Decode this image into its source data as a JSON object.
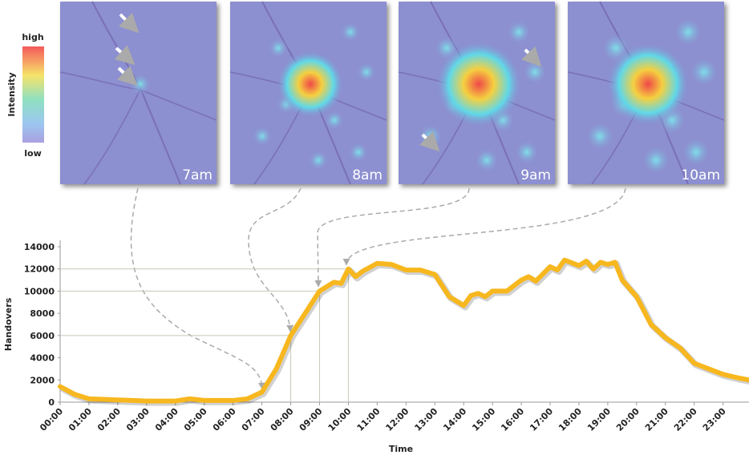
{
  "chart_data": {
    "type": "line",
    "x_label": "Time",
    "y_label": "Handovers",
    "x": [
      0,
      0.5,
      1,
      1.5,
      2,
      2.5,
      3,
      3.5,
      4,
      4.5,
      5,
      5.5,
      6,
      6.5,
      7,
      7.5,
      8,
      8.5,
      9,
      9.5,
      9.75,
      10,
      10.25,
      10.5,
      11,
      11.5,
      12,
      12.5,
      13,
      13.5,
      14,
      14.25,
      14.5,
      14.75,
      15,
      15.5,
      16,
      16.25,
      16.5,
      17,
      17.25,
      17.5,
      18,
      18.25,
      18.5,
      18.75,
      19,
      19.25,
      19.5,
      20,
      20.5,
      21,
      21.5,
      22,
      22.5,
      23,
      23.5,
      23.9
    ],
    "series": [
      {
        "name": "Handovers",
        "color": "#f7b71e",
        "values": [
          1400,
          700,
          300,
          250,
          200,
          150,
          100,
          100,
          100,
          300,
          150,
          150,
          150,
          300,
          900,
          3000,
          6000,
          8000,
          10000,
          10800,
          10700,
          12000,
          11300,
          11800,
          12500,
          12400,
          11900,
          11900,
          11500,
          9500,
          8700,
          9600,
          9800,
          9500,
          10000,
          10000,
          11000,
          11300,
          10900,
          12200,
          11900,
          12800,
          12300,
          12700,
          12000,
          12600,
          12400,
          12600,
          11000,
          9500,
          7000,
          5800,
          4900,
          3500,
          3000,
          2500,
          2200,
          2000
        ]
      }
    ],
    "reference_points": [
      {
        "x": 8,
        "y": 6000
      },
      {
        "x": 9,
        "y": 10000
      },
      {
        "x": 10,
        "y": 12000
      }
    ],
    "xlim": [
      0,
      23.9
    ],
    "xticks": [
      {
        "value": 0,
        "label": "00:00"
      },
      {
        "value": 1,
        "label": "01:00"
      },
      {
        "value": 2,
        "label": "02:00"
      },
      {
        "value": 3,
        "label": "03:00"
      },
      {
        "value": 4,
        "label": "04:00"
      },
      {
        "value": 5,
        "label": "05:00"
      },
      {
        "value": 6,
        "label": "06:00"
      },
      {
        "value": 7,
        "label": "07:00"
      },
      {
        "value": 8,
        "label": "08:00"
      },
      {
        "value": 9,
        "label": "09:00"
      },
      {
        "value": 10,
        "label": "10:00"
      },
      {
        "value": 11,
        "label": "11:00"
      },
      {
        "value": 12,
        "label": "12:00"
      },
      {
        "value": 13,
        "label": "13:00"
      },
      {
        "value": 14,
        "label": "14:00"
      },
      {
        "value": 15,
        "label": "15:00"
      },
      {
        "value": 16,
        "label": "16:00"
      },
      {
        "value": 17,
        "label": "17:00"
      },
      {
        "value": 18,
        "label": "18:00"
      },
      {
        "value": 19,
        "label": "19:00"
      },
      {
        "value": 20,
        "label": "20:00"
      },
      {
        "value": 21,
        "label": "21:00"
      },
      {
        "value": 22,
        "label": "22:00"
      },
      {
        "value": 23,
        "label": "23:00"
      }
    ],
    "ylim": [
      0,
      14000
    ],
    "yticks": [
      0,
      2000,
      4000,
      6000,
      8000,
      10000,
      12000,
      14000
    ]
  },
  "heatmap": {
    "title": "Intensity",
    "high": "high",
    "low": "low",
    "panels": [
      "7am",
      "8am",
      "9am",
      "10am"
    ]
  }
}
